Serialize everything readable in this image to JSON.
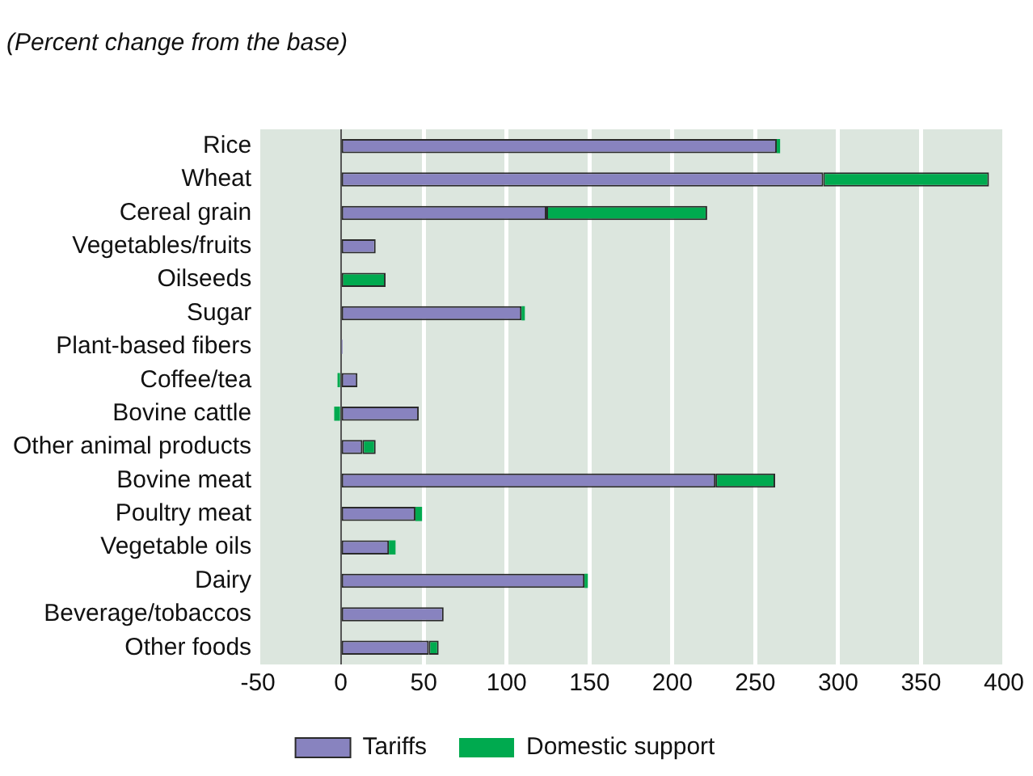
{
  "chart_data": {
    "type": "bar",
    "orientation": "horizontal",
    "stacked": true,
    "subtitle": "(Percent change from the base)",
    "categories": [
      "Rice",
      "Wheat",
      "Cereal grain",
      "Vegetables/fruits",
      "Oilseeds",
      "Sugar",
      "Plant-based fibers",
      "Coffee/tea",
      "Bovine cattle",
      "Other animal products",
      "Bovine meat",
      "Poultry meat",
      "Vegetable oils",
      "Dairy",
      "Beverage/tobaccos",
      "Other foods"
    ],
    "series": [
      {
        "name": "Tariffs",
        "color": "#8883bf",
        "values": [
          263,
          291,
          124,
          21,
          0,
          109,
          1,
          10,
          47,
          13,
          226,
          45,
          29,
          147,
          62,
          53
        ]
      },
      {
        "name": "Domestic support",
        "color": "#00aa4f",
        "values": [
          2,
          100,
          97,
          0,
          27,
          2,
          0,
          -2,
          -4,
          8,
          36,
          4,
          4,
          2,
          0,
          6
        ]
      }
    ],
    "xlim": [
      -50,
      400
    ],
    "xticks": [
      -50,
      0,
      50,
      100,
      150,
      200,
      250,
      300,
      350,
      400
    ],
    "grid": "x",
    "legend": "bottom"
  }
}
